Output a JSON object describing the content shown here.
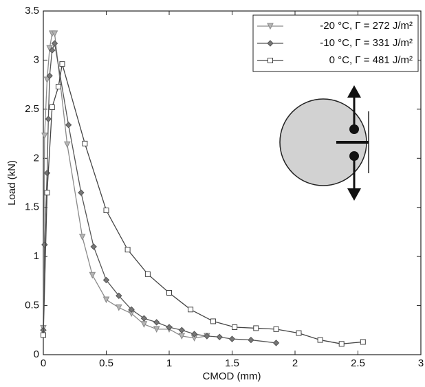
{
  "chart_data": {
    "type": "line",
    "x_label": "CMOD (mm)",
    "y_label": "Load (kN)",
    "xlim": [
      0,
      3
    ],
    "ylim": [
      0,
      3.5
    ],
    "xticks": [
      0,
      0.5,
      1,
      1.5,
      2,
      2.5,
      3
    ],
    "yticks": [
      0,
      0.5,
      1,
      1.5,
      2,
      2.5,
      3,
      3.5
    ],
    "grid": false,
    "legend": "upper right",
    "series": [
      {
        "name": "-20 °C, Γ = 272 J/m²",
        "color": "#8a8a8a",
        "marker": "triangle-down",
        "x": [
          0,
          0.01,
          0.03,
          0.05,
          0.07,
          0.09,
          0.19,
          0.31,
          0.39,
          0.5,
          0.6,
          0.7,
          0.8,
          0.9,
          1.0,
          1.1,
          1.2,
          1.3
        ],
        "values": [
          0.27,
          2.23,
          2.8,
          3.12,
          3.27,
          3.27,
          2.14,
          1.2,
          0.81,
          0.56,
          0.48,
          0.42,
          0.31,
          0.26,
          0.26,
          0.19,
          0.17,
          0.19
        ]
      },
      {
        "name": "-10 °C, Γ = 331 J/m²",
        "color": "#555555",
        "marker": "diamond",
        "x": [
          0,
          0.01,
          0.03,
          0.04,
          0.05,
          0.07,
          0.09,
          0.2,
          0.3,
          0.4,
          0.5,
          0.6,
          0.7,
          0.8,
          0.9,
          1.0,
          1.1,
          1.2,
          1.3,
          1.4,
          1.5,
          1.65,
          1.85
        ],
        "values": [
          0.25,
          1.12,
          1.85,
          2.4,
          2.84,
          3.1,
          3.17,
          2.34,
          1.65,
          1.1,
          0.76,
          0.6,
          0.46,
          0.37,
          0.33,
          0.28,
          0.25,
          0.21,
          0.19,
          0.18,
          0.16,
          0.15,
          0.12
        ]
      },
      {
        "name": "0 °C, Γ = 481 J/m²",
        "color": "#444444",
        "marker": "square",
        "x": [
          0,
          0.03,
          0.07,
          0.12,
          0.15,
          0.33,
          0.5,
          0.67,
          0.83,
          1.0,
          1.17,
          1.35,
          1.52,
          1.69,
          1.85,
          2.03,
          2.2,
          2.37,
          2.54
        ],
        "values": [
          0.2,
          1.65,
          2.52,
          2.73,
          2.96,
          2.15,
          1.47,
          1.07,
          0.82,
          0.63,
          0.46,
          0.34,
          0.28,
          0.27,
          0.26,
          0.22,
          0.15,
          0.11,
          0.13
        ]
      }
    ]
  }
}
